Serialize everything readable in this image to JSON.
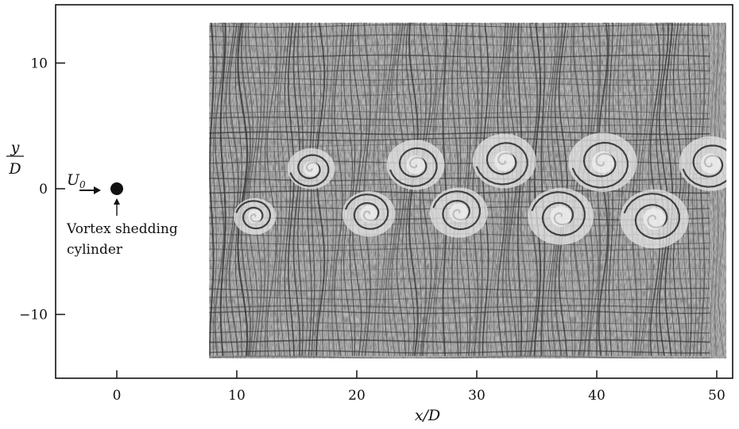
{
  "figure": {
    "x_axis_label": "x/D",
    "y_axis_label": {
      "numerator": "y",
      "denominator": "D"
    },
    "x_ticks": [
      "0",
      "10",
      "20",
      "30",
      "40",
      "50"
    ],
    "y_ticks": [
      "10",
      "0",
      "−10"
    ],
    "x_tick_values": [
      0,
      10,
      20,
      30,
      40,
      50
    ],
    "y_tick_values": [
      10,
      0,
      -10
    ],
    "x_range": [
      -5,
      51.5
    ],
    "y_range": [
      -15,
      15
    ],
    "flow_label": {
      "symbol": "U",
      "subscript": "0"
    },
    "cylinder_label": [
      "Vortex shedding",
      "cylinder"
    ],
    "cylinder_position": {
      "x": 0,
      "y": 0
    },
    "image_extent": {
      "x": [
        7.7,
        50.8
      ],
      "y": [
        -13.5,
        13.2
      ]
    },
    "image_description_icon": "vortex-street-photograph",
    "colors": {
      "ink": "#111111",
      "photo_background": "#b8b8b8",
      "vortex": "#e4e4e4",
      "streak": "#2a2a2a"
    }
  }
}
